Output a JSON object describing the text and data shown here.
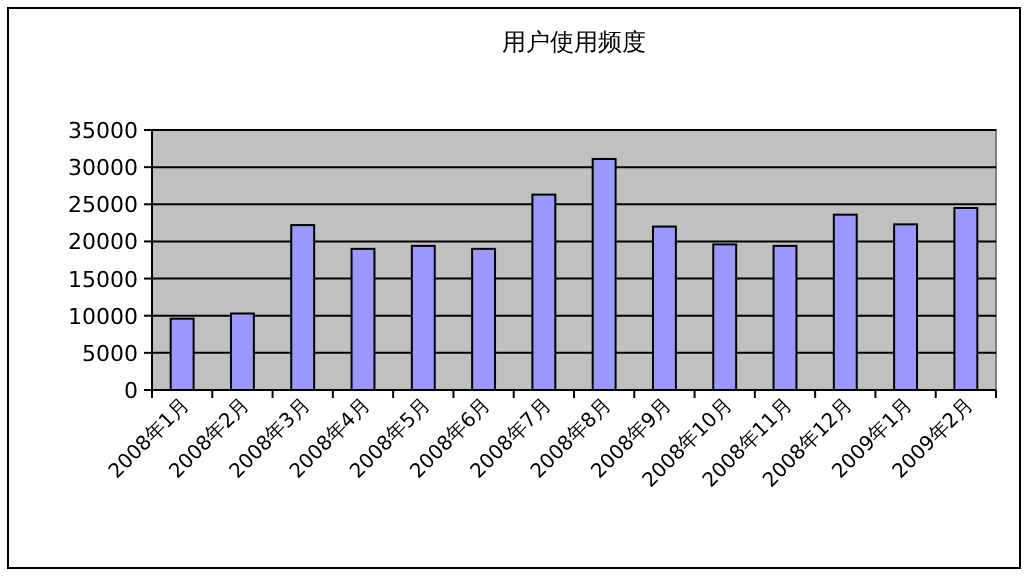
{
  "chart_data": {
    "type": "bar",
    "title": "用户使用频度",
    "categories": [
      "2008年1月",
      "2008年2月",
      "2008年3月",
      "2008年4月",
      "2008年5月",
      "2008年6月",
      "2008年7月",
      "2008年8月",
      "2008年9月",
      "2008年10月",
      "2008年11月",
      "2008年12月",
      "2009年1月",
      "2009年2月"
    ],
    "values": [
      9600,
      10300,
      22200,
      19000,
      19400,
      19000,
      26300,
      31100,
      22000,
      19600,
      19400,
      23600,
      22300,
      24500
    ],
    "color": "#9999ff",
    "ylim": [
      0,
      35000
    ],
    "yticks": [
      0,
      5000,
      10000,
      15000,
      20000,
      25000,
      30000,
      35000
    ],
    "grid": "y"
  }
}
